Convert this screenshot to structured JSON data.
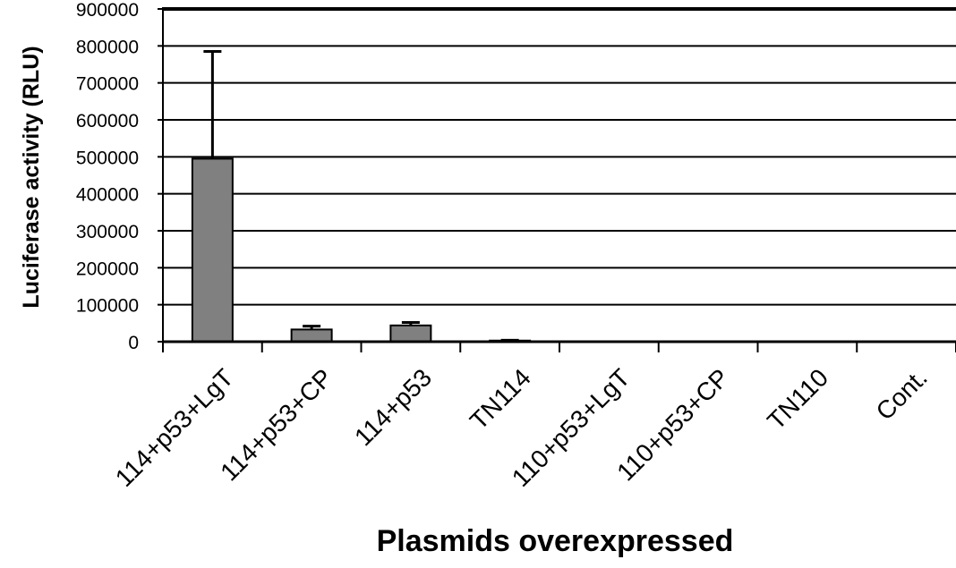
{
  "chart_data": {
    "type": "bar",
    "title": "",
    "xlabel": "Plasmids overexpressed",
    "ylabel": "Luciferase activity (RLU)",
    "ylim": [
      0,
      900000
    ],
    "yticks": [
      0,
      100000,
      200000,
      300000,
      400000,
      500000,
      600000,
      700000,
      800000,
      900000
    ],
    "ytick_labels": [
      "0",
      "100000",
      "200000",
      "300000",
      "400000",
      "500000",
      "600000",
      "700000",
      "800000",
      "900000"
    ],
    "grid": true,
    "legend": "none",
    "categories": [
      "114+p53+LgT",
      "114+p53+CP",
      "114+p53",
      "TN114",
      "110+p53+LgT",
      "110+p53+CP",
      "TN110",
      "Cont."
    ],
    "series": [
      {
        "values": [
          495000,
          33000,
          44000,
          3000,
          0,
          0,
          0,
          0
        ],
        "error_upper": [
          785000,
          42000,
          52000,
          4000,
          0,
          0,
          0,
          0
        ]
      }
    ],
    "colors": {
      "bar": "#808080",
      "bar_edge": "#000000",
      "grid": "#000000"
    }
  }
}
